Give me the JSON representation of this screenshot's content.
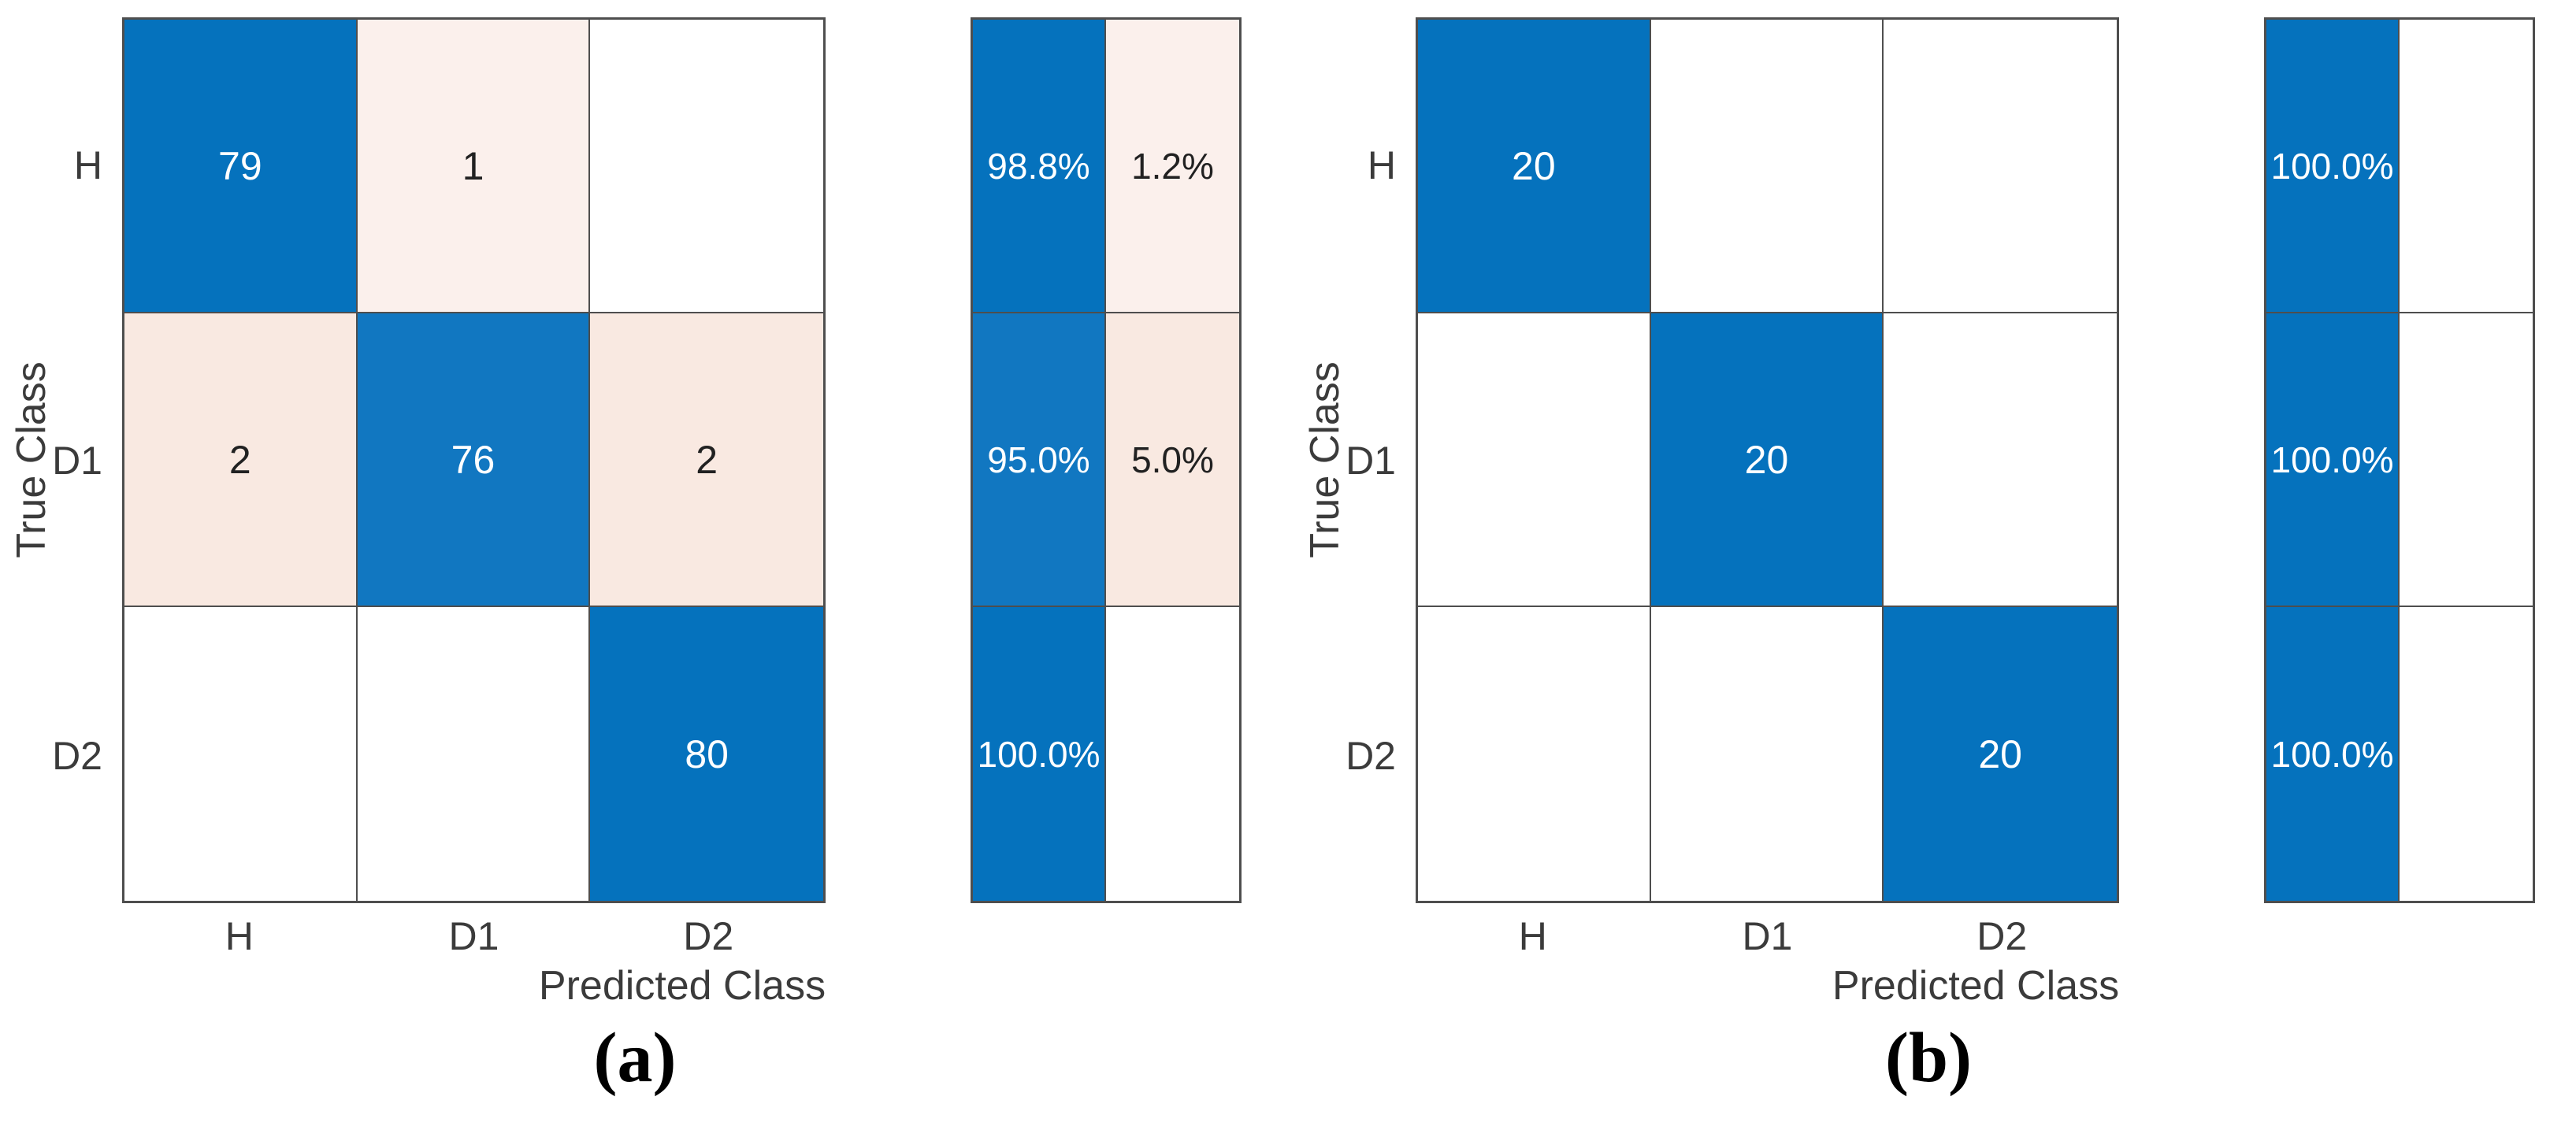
{
  "colors": {
    "diag": "#0572BD",
    "diag_light": "#1177C1",
    "off": "#F9E9E1",
    "off_light": "#FBF0EC",
    "empty": "#FFFFFF",
    "grid_line": "#4E4E4E",
    "axis_text": "#3B3B3B",
    "text_on_diag": "#FFFFFF",
    "text_on_off": "#212121",
    "background": "#FFFFFF"
  },
  "chart_data": [
    {
      "type": "heatmap",
      "subtype": "confusion-matrix",
      "caption": "(a)",
      "xlabel": "Predicted Class",
      "ylabel": "True Class",
      "classes": [
        "H",
        "D1",
        "D2"
      ],
      "matrix": [
        [
          79,
          1,
          0
        ],
        [
          2,
          76,
          2
        ],
        [
          0,
          0,
          80
        ]
      ],
      "cell_text": [
        [
          "79",
          "1",
          ""
        ],
        [
          "2",
          "76",
          "2"
        ],
        [
          "",
          "",
          "80"
        ]
      ],
      "cell_styles": [
        [
          "diag",
          "off_light",
          "empty"
        ],
        [
          "off",
          "diag_light",
          "off"
        ],
        [
          "empty",
          "empty",
          "diag"
        ]
      ],
      "row_summary": {
        "recall_pct": [
          98.8,
          95.0,
          100.0
        ],
        "miss_pct": [
          1.2,
          5.0,
          null
        ],
        "cell_text": [
          [
            "98.8%",
            "1.2%"
          ],
          [
            "95.0%",
            "5.0%"
          ],
          [
            "100.0%",
            ""
          ]
        ],
        "cell_styles": [
          [
            "diag",
            "off_light"
          ],
          [
            "diag_light",
            "off"
          ],
          [
            "diag",
            "empty"
          ]
        ]
      }
    },
    {
      "type": "heatmap",
      "subtype": "confusion-matrix",
      "caption": "(b)",
      "xlabel": "Predicted Class",
      "ylabel": "True Class",
      "classes": [
        "H",
        "D1",
        "D2"
      ],
      "matrix": [
        [
          20,
          0,
          0
        ],
        [
          0,
          20,
          0
        ],
        [
          0,
          0,
          20
        ]
      ],
      "cell_text": [
        [
          "20",
          "",
          ""
        ],
        [
          "",
          "20",
          ""
        ],
        [
          "",
          "",
          "20"
        ]
      ],
      "cell_styles": [
        [
          "diag",
          "empty",
          "empty"
        ],
        [
          "empty",
          "diag",
          "empty"
        ],
        [
          "empty",
          "empty",
          "diag"
        ]
      ],
      "row_summary": {
        "recall_pct": [
          100.0,
          100.0,
          100.0
        ],
        "miss_pct": [
          null,
          null,
          null
        ],
        "cell_text": [
          [
            "100.0%",
            ""
          ],
          [
            "100.0%",
            ""
          ],
          [
            "100.0%",
            ""
          ]
        ],
        "cell_styles": [
          [
            "diag",
            "empty"
          ],
          [
            "diag",
            "empty"
          ],
          [
            "diag",
            "empty"
          ]
        ]
      }
    }
  ]
}
